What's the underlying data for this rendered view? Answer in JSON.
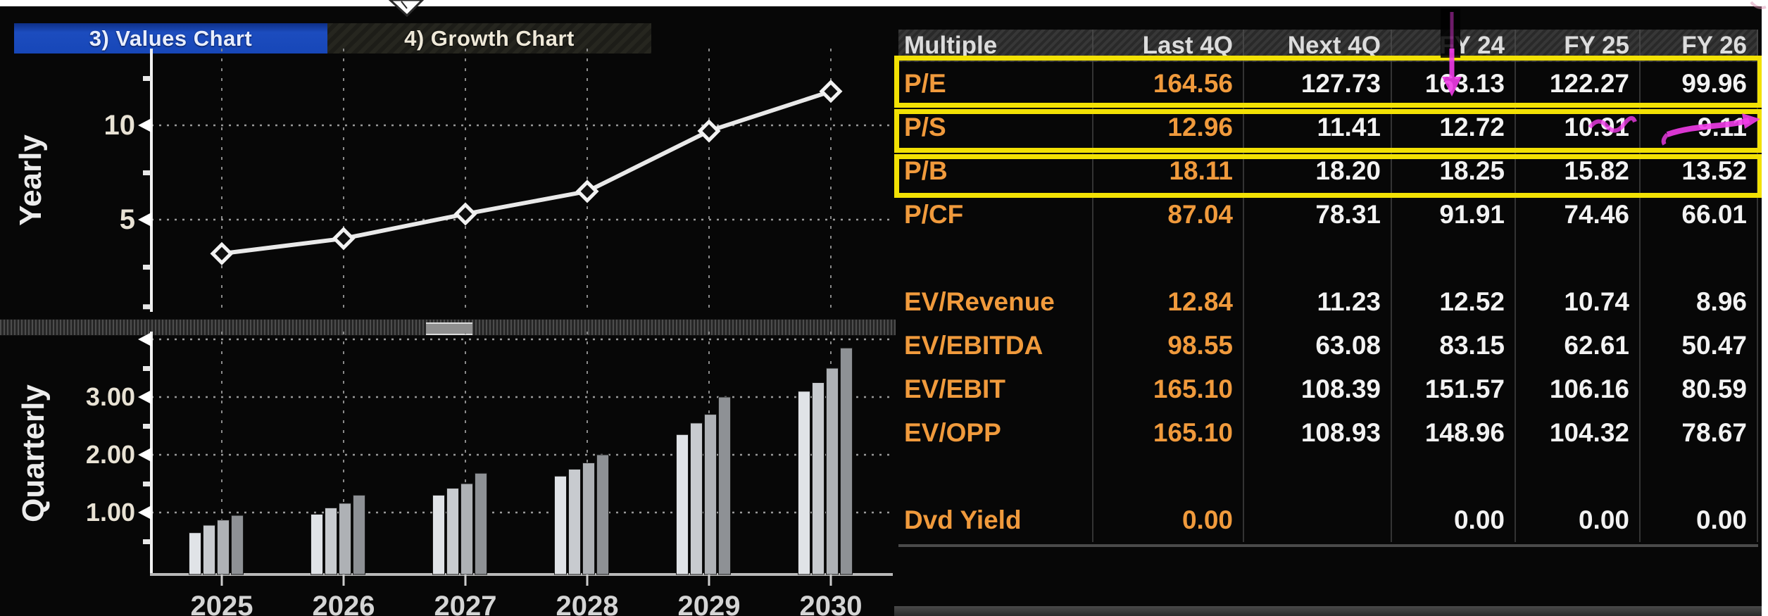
{
  "tabs": [
    {
      "label": "3) Values Chart",
      "num": "3)",
      "text": "Values Chart",
      "active": true
    },
    {
      "label": "4) Growth Chart",
      "num": "4)",
      "text": "Growth Chart",
      "active": false
    }
  ],
  "chart_data": [
    {
      "type": "line",
      "name": "yearly-values-chart",
      "ylabel": "Yearly",
      "x": [
        2025,
        2026,
        2027,
        2028,
        2029,
        2030
      ],
      "values": [
        3.2,
        4.0,
        5.3,
        6.5,
        9.7,
        11.8
      ],
      "ytick_labels": [
        "10",
        "5"
      ],
      "yticks": [
        10,
        5
      ],
      "ylim": [
        0,
        14
      ],
      "grid": true,
      "marker": "diamond",
      "line_color": "#e9e9e9"
    },
    {
      "type": "bar",
      "name": "quarterly-values-chart",
      "ylabel": "Quarterly",
      "categories": [
        "2025",
        "2026",
        "2027",
        "2028",
        "2029",
        "2030"
      ],
      "series": [
        {
          "name": "Q1",
          "values": [
            0.65,
            0.97,
            1.3,
            1.63,
            2.35,
            3.1
          ],
          "color": "#e0e3e7"
        },
        {
          "name": "Q2",
          "values": [
            0.78,
            1.08,
            1.42,
            1.75,
            2.55,
            3.25
          ],
          "color": "#c8cbcf"
        },
        {
          "name": "Q3",
          "values": [
            0.87,
            1.16,
            1.5,
            1.86,
            2.7,
            3.5
          ],
          "color": "#aeb1b5"
        },
        {
          "name": "Q4",
          "values": [
            0.95,
            1.3,
            1.68,
            2.0,
            3.0,
            3.85
          ],
          "color": "#8e9195"
        }
      ],
      "ytick_labels": [
        "3.00",
        "2.00",
        "1.00"
      ],
      "yticks": [
        3,
        2,
        1
      ],
      "ylim": [
        0,
        4.2
      ],
      "grid": true
    }
  ],
  "table": {
    "columns": [
      "Multiple",
      "Last 4Q",
      "Next 4Q",
      "FY 24",
      "FY 25",
      "FY 26"
    ],
    "rows": [
      {
        "type": "data",
        "label": "P/E",
        "values": [
          "164.56",
          "127.73",
          "163.13",
          "122.27",
          "99.96"
        ],
        "highlighted": true
      },
      {
        "type": "data",
        "label": "P/S",
        "values": [
          "12.96",
          "11.41",
          "12.72",
          "10.91",
          "9.11"
        ],
        "highlighted": true
      },
      {
        "type": "data",
        "label": "P/B",
        "values": [
          "18.11",
          "18.20",
          "18.25",
          "15.82",
          "13.52"
        ],
        "highlighted": true
      },
      {
        "type": "data",
        "label": "P/CF",
        "values": [
          "87.04",
          "78.31",
          "91.91",
          "74.46",
          "66.01"
        ],
        "highlighted": false
      },
      {
        "type": "gap"
      },
      {
        "type": "data",
        "label": "EV/Revenue",
        "values": [
          "12.84",
          "11.23",
          "12.52",
          "10.74",
          "8.96"
        ],
        "highlighted": false
      },
      {
        "type": "data",
        "label": "EV/EBITDA",
        "values": [
          "98.55",
          "63.08",
          "83.15",
          "62.61",
          "50.47"
        ],
        "highlighted": false
      },
      {
        "type": "data",
        "label": "EV/EBIT",
        "values": [
          "165.10",
          "108.39",
          "151.57",
          "106.16",
          "80.59"
        ],
        "highlighted": false
      },
      {
        "type": "data",
        "label": "EV/OPP",
        "values": [
          "165.10",
          "108.93",
          "148.96",
          "104.32",
          "78.67"
        ],
        "highlighted": false
      },
      {
        "type": "gap"
      },
      {
        "type": "data",
        "label": "Dvd Yield",
        "values": [
          "0.00",
          "",
          "0.00",
          "0.00",
          "0.00"
        ],
        "highlighted": false
      }
    ]
  },
  "annotations": {
    "highlighted_rows": [
      "P/E",
      "P/S",
      "P/B"
    ],
    "highlight_color": "#f2e104",
    "marker_color": "#f13ce8",
    "marks": [
      "down-arrow-over-163.13",
      "scribble-over-10.91",
      "strike-arrow-over-9.11"
    ]
  },
  "colors": {
    "panel_bg": "#070707",
    "tab_blue": "#1747b8",
    "amber": "#f09a3c",
    "value_white": "#f2f2f2",
    "header_bg": "#2f2f2f",
    "grid_gray": "#8a8a8a"
  }
}
